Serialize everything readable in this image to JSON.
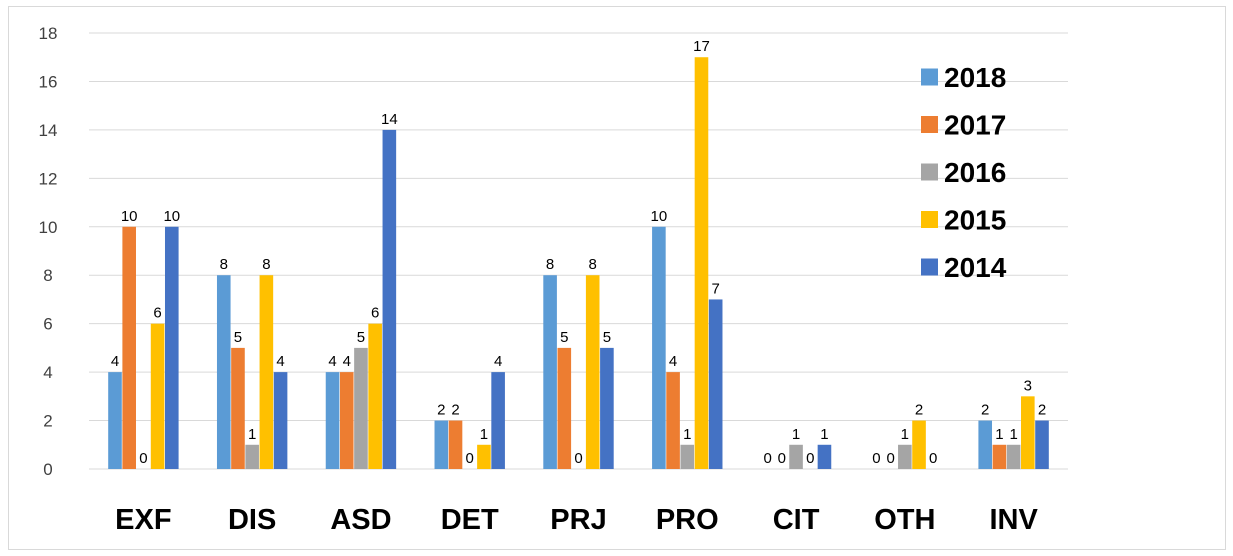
{
  "chart_data": {
    "type": "bar",
    "title": "",
    "xlabel": "",
    "ylabel": "",
    "categories": [
      "EXF",
      "DIS",
      "ASD",
      "DET",
      "PRJ",
      "PRO",
      "CIT",
      "OTH",
      "INV"
    ],
    "series": [
      {
        "name": "2018",
        "color": "#5b9bd5",
        "values": [
          4,
          8,
          4,
          2,
          8,
          10,
          0,
          0,
          2
        ]
      },
      {
        "name": "2017",
        "color": "#ed7d31",
        "values": [
          10,
          5,
          4,
          2,
          5,
          4,
          0,
          0,
          1
        ]
      },
      {
        "name": "2016",
        "color": "#a5a5a5",
        "values": [
          0,
          1,
          5,
          0,
          0,
          1,
          1,
          1,
          1
        ]
      },
      {
        "name": "2015",
        "color": "#ffc000",
        "values": [
          6,
          8,
          6,
          1,
          8,
          17,
          0,
          2,
          3
        ]
      },
      {
        "name": "2014",
        "color": "#4472c4",
        "values": [
          10,
          4,
          14,
          4,
          5,
          7,
          1,
          0,
          2
        ]
      }
    ],
    "ylim": [
      0,
      18
    ],
    "yticks": [
      0,
      2,
      4,
      6,
      8,
      10,
      12,
      14,
      16,
      18
    ],
    "grid": true,
    "legend_position": "top-right",
    "data_labels": true
  }
}
